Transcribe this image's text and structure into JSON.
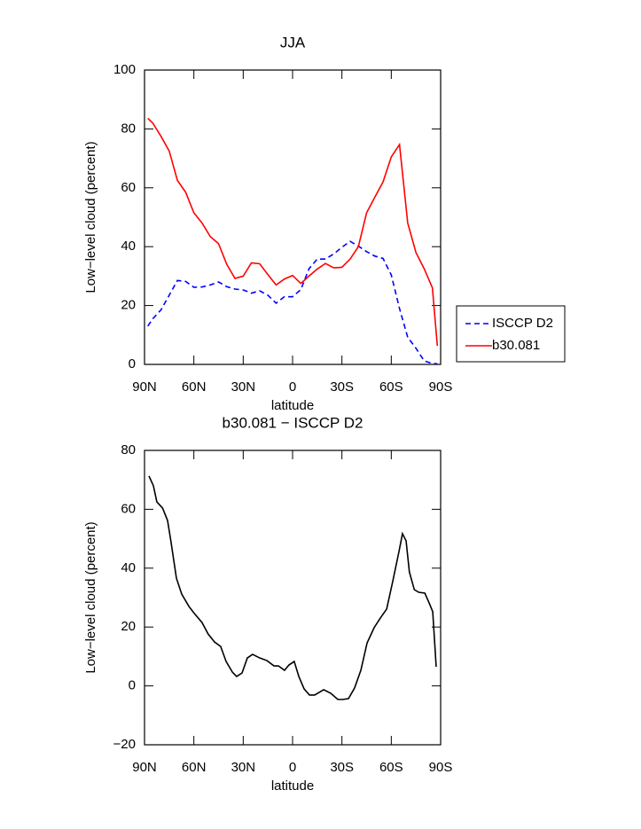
{
  "chart_data": [
    {
      "type": "line",
      "title": "JJA",
      "xlabel": "latitude",
      "ylabel": "Low−level cloud (percent)",
      "x": [
        88,
        85,
        80,
        75,
        70,
        65,
        60,
        55,
        50,
        45,
        40,
        35,
        30,
        25,
        20,
        15,
        10,
        5,
        0,
        -5,
        -10,
        -15,
        -20,
        -25,
        -30,
        -35,
        -40,
        -45,
        -50,
        -55,
        -60,
        -65,
        -70,
        -75,
        -80,
        -85,
        -88
      ],
      "series": [
        {
          "name": "ISCCP D2",
          "color": "#0000ff",
          "line_style": "dashed",
          "values": [
            13,
            15.5,
            18.5,
            23.5,
            28.5,
            28.2,
            26.2,
            26.3,
            27,
            28,
            26.4,
            25.6,
            25.3,
            24.2,
            25,
            23.5,
            20.8,
            23,
            23,
            25.4,
            32.5,
            35.8,
            35.8,
            37.5,
            39.8,
            41.8,
            40.2,
            38.3,
            36.8,
            36,
            30.4,
            19,
            9.2,
            5.5,
            1.2,
            0.3,
            0.2
          ]
        },
        {
          "name": "b30.081",
          "color": "#ff0000",
          "line_style": "solid",
          "values": [
            83.6,
            82,
            77.5,
            72.5,
            62.5,
            58.5,
            51.5,
            48,
            43.4,
            41,
            34,
            29.2,
            30,
            34.5,
            34.2,
            30.5,
            27,
            29,
            30.2,
            27.5,
            30,
            32.4,
            34.3,
            32.8,
            33,
            35.8,
            40,
            51.5,
            56.8,
            62,
            70.5,
            74.7,
            48,
            38,
            32.5,
            26,
            6.3
          ]
        }
      ],
      "xlim": [
        90,
        -90
      ],
      "xticks": [
        {
          "value": 90,
          "label": "90N"
        },
        {
          "value": 60,
          "label": "60N"
        },
        {
          "value": 30,
          "label": "30N"
        },
        0,
        {
          "value": -30,
          "label": "30S"
        },
        {
          "value": -60,
          "label": "60S"
        },
        {
          "value": -90,
          "label": "90S"
        }
      ],
      "ylim": [
        0,
        100
      ],
      "yticks": [
        0,
        20,
        40,
        60,
        80,
        100
      ],
      "legend": "right"
    },
    {
      "type": "line",
      "title": "b30.081 − ISCCP D2",
      "xlabel": "latitude",
      "ylabel": "Low−level cloud (percent)",
      "x": [
        87.3,
        84.6,
        82.5,
        79,
        76,
        74,
        70.6,
        67.4,
        63,
        60,
        55,
        51.3,
        47.4,
        43.7,
        40.4,
        36.6,
        34,
        30.7,
        27.5,
        24.3,
        20,
        15.6,
        11.3,
        8.6,
        4.9,
        2.2,
        -1,
        -3.8,
        -7,
        -10.3,
        -13.4,
        -18.9,
        -23.2,
        -27.5,
        -30.7,
        -34,
        -37.7,
        -41.5,
        -45.3,
        -49.6,
        -53.4,
        -57.2,
        -61,
        -64.7,
        -66.8,
        -69,
        -71,
        -74,
        -76.7,
        -80.4,
        -83,
        -85.2,
        -87.3
      ],
      "series": [
        {
          "color": "#000000",
          "line_style": "solid",
          "values": [
            71.3,
            68,
            62.5,
            60.4,
            56.2,
            49.3,
            36.6,
            31.2,
            27,
            24.8,
            21.5,
            17.6,
            14.9,
            13.4,
            8.3,
            4.7,
            3.2,
            4.4,
            9.5,
            10.7,
            9.5,
            8.6,
            6.8,
            6.8,
            5.3,
            7.1,
            8.3,
            3.2,
            -1,
            -3.1,
            -3.1,
            -1.3,
            -2.5,
            -4.6,
            -4.6,
            -4.3,
            -0.7,
            5.3,
            14.6,
            19.8,
            23.1,
            26.1,
            35.8,
            45.7,
            51.7,
            49.3,
            38.7,
            32.7,
            31.8,
            31.5,
            28.2,
            25.2,
            6.5
          ]
        }
      ],
      "xlim": [
        90,
        -90
      ],
      "xticks": [
        {
          "value": 90,
          "label": "90N"
        },
        {
          "value": 60,
          "label": "60N"
        },
        {
          "value": 30,
          "label": "30N"
        },
        0,
        {
          "value": -30,
          "label": "30S"
        },
        {
          "value": -60,
          "label": "60S"
        },
        {
          "value": -90,
          "label": "90S"
        }
      ],
      "ylim": [
        -20,
        80
      ],
      "yticks": [
        {
          "value": -20,
          "label": "−20"
        },
        0,
        20,
        40,
        60,
        80
      ]
    }
  ]
}
